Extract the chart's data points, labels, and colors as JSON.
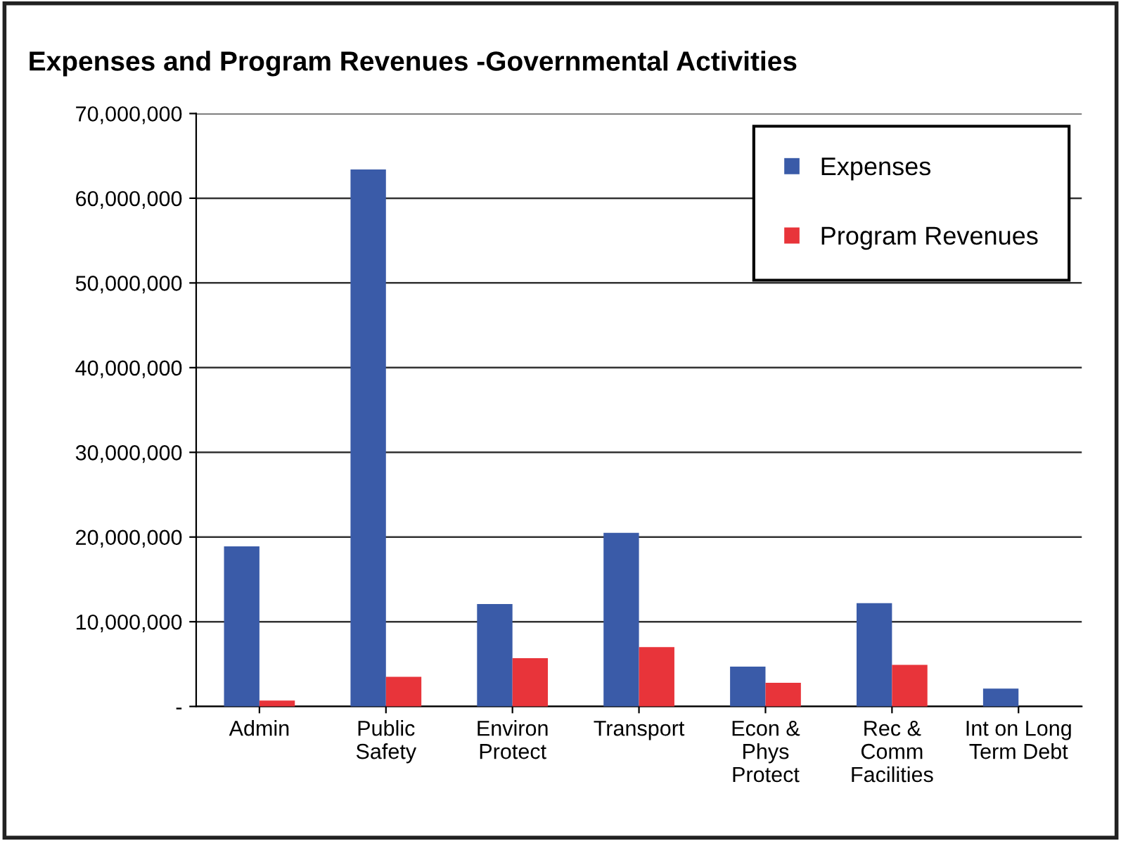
{
  "chart_data": {
    "type": "bar",
    "title": "Expenses and Program Revenues -Governmental Activities",
    "categories": [
      "Admin",
      "Public\nSafety",
      "Environ\nProtect",
      "Transport",
      "Econ &\nPhys\nProtect",
      "Rec &\nComm\nFacilities",
      "Int on Long\nTerm Debt"
    ],
    "series": [
      {
        "name": "Expenses",
        "color": "#3a5ba8",
        "values": [
          18900000,
          63400000,
          12100000,
          20500000,
          4700000,
          12200000,
          2100000
        ]
      },
      {
        "name": "Program Revenues",
        "color": "#e8343a",
        "values": [
          700000,
          3500000,
          5700000,
          7000000,
          2800000,
          4900000,
          0
        ]
      }
    ],
    "ylim": [
      0,
      70000000
    ],
    "yticks": [
      {
        "value": 0,
        "label": "-"
      },
      {
        "value": 10000000,
        "label": "10,000,000"
      },
      {
        "value": 20000000,
        "label": "20,000,000"
      },
      {
        "value": 30000000,
        "label": "30,000,000"
      },
      {
        "value": 40000000,
        "label": "40,000,000"
      },
      {
        "value": 50000000,
        "label": "50,000,000"
      },
      {
        "value": 60000000,
        "label": "60,000,000"
      },
      {
        "value": 70000000,
        "label": "70,000,000"
      }
    ],
    "grid": "y",
    "legend": "top right"
  }
}
